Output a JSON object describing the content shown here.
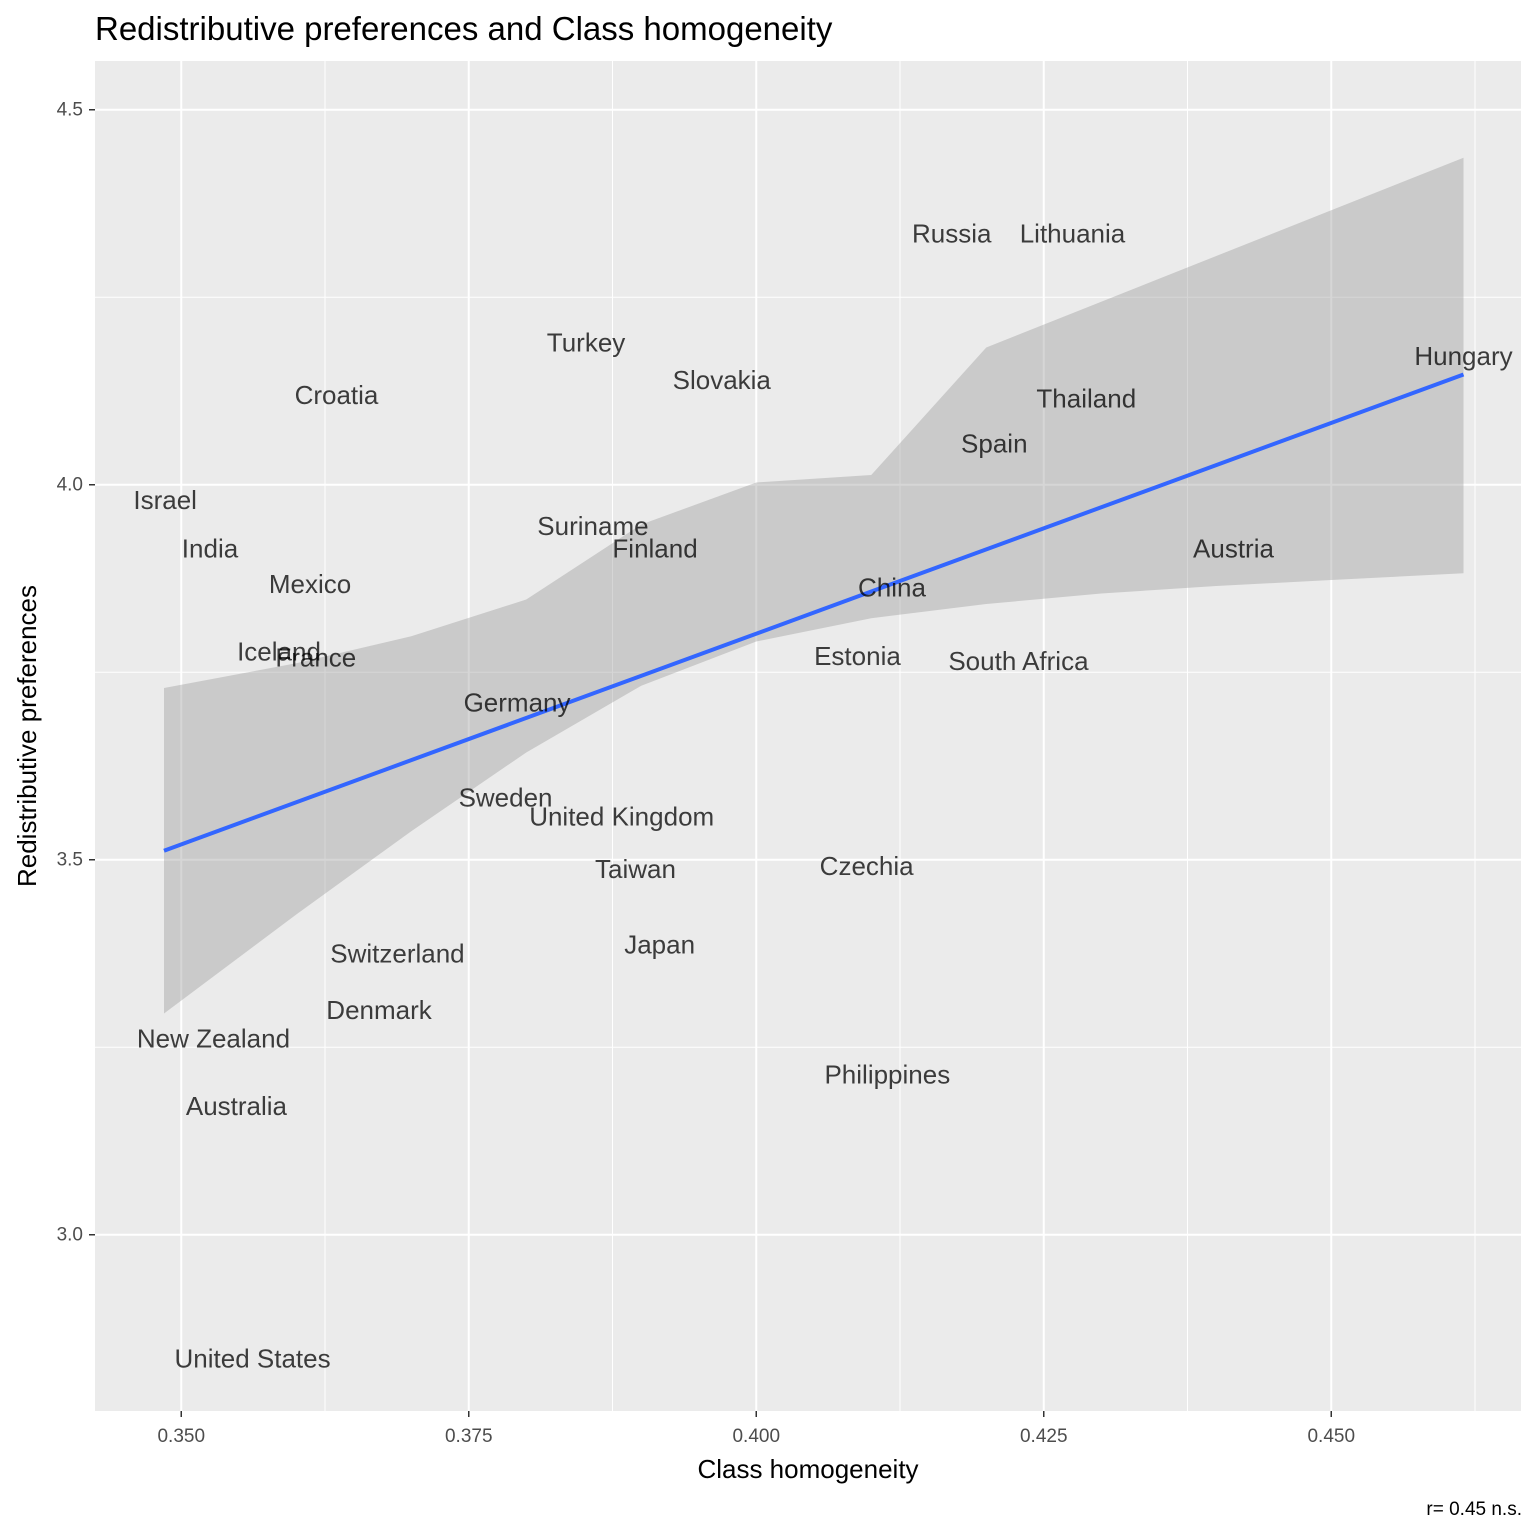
{
  "chart_data": {
    "type": "scatter",
    "title": "Redistributive preferences and Class homogeneity",
    "xlabel": "Class homogeneity",
    "ylabel": "Redistributive preferences",
    "xlim": [
      0.3425,
      0.4665
    ],
    "ylim": [
      2.765,
      4.565
    ],
    "x_ticks": [
      0.35,
      0.375,
      0.4,
      0.425,
      0.45
    ],
    "x_tick_labels": [
      "0.350",
      "0.375",
      "0.400",
      "0.425",
      "0.450"
    ],
    "y_ticks": [
      3.0,
      3.5,
      4.0,
      4.5
    ],
    "y_tick_labels": [
      "3.0",
      "3.5",
      "4.0",
      "4.5"
    ],
    "grid": true,
    "points": [
      {
        "label": "Russia",
        "x": 0.417,
        "y": 4.335
      },
      {
        "label": "Lithuania",
        "x": 0.4275,
        "y": 4.335
      },
      {
        "label": "Turkey",
        "x": 0.3852,
        "y": 4.19
      },
      {
        "label": "Hungary",
        "x": 0.4615,
        "y": 4.172
      },
      {
        "label": "Slovakia",
        "x": 0.397,
        "y": 4.14
      },
      {
        "label": "Croatia",
        "x": 0.3635,
        "y": 4.12
      },
      {
        "label": "Thailand",
        "x": 0.4287,
        "y": 4.115
      },
      {
        "label": "Spain",
        "x": 0.4207,
        "y": 4.055
      },
      {
        "label": "Israel",
        "x": 0.3486,
        "y": 3.98
      },
      {
        "label": "Suriname",
        "x": 0.3858,
        "y": 3.945
      },
      {
        "label": "India",
        "x": 0.3525,
        "y": 3.915
      },
      {
        "label": "Finland",
        "x": 0.3912,
        "y": 3.915
      },
      {
        "label": "Austria",
        "x": 0.4415,
        "y": 3.915
      },
      {
        "label": "Mexico",
        "x": 0.3612,
        "y": 3.868
      },
      {
        "label": "China",
        "x": 0.4118,
        "y": 3.863
      },
      {
        "label": "Iceland",
        "x": 0.3585,
        "y": 3.778
      },
      {
        "label": "France",
        "x": 0.3617,
        "y": 3.77
      },
      {
        "label": "Estonia",
        "x": 0.4088,
        "y": 3.772
      },
      {
        "label": "South Africa",
        "x": 0.4228,
        "y": 3.765
      },
      {
        "label": "Germany",
        "x": 0.3792,
        "y": 3.71
      },
      {
        "label": "Sweden",
        "x": 0.3782,
        "y": 3.583
      },
      {
        "label": "United Kingdom",
        "x": 0.3883,
        "y": 3.558
      },
      {
        "label": "Taiwan",
        "x": 0.3895,
        "y": 3.488
      },
      {
        "label": "Czechia",
        "x": 0.4096,
        "y": 3.492
      },
      {
        "label": "Japan",
        "x": 0.3916,
        "y": 3.387
      },
      {
        "label": "Switzerland",
        "x": 0.3688,
        "y": 3.375
      },
      {
        "label": "Denmark",
        "x": 0.3672,
        "y": 3.3
      },
      {
        "label": "New Zealand",
        "x": 0.3528,
        "y": 3.262
      },
      {
        "label": "Philippines",
        "x": 0.4114,
        "y": 3.214
      },
      {
        "label": "Australia",
        "x": 0.3548,
        "y": 3.172
      },
      {
        "label": "United States",
        "x": 0.3562,
        "y": 2.835
      }
    ],
    "fit_line": {
      "x": [
        0.3485,
        0.4615
      ],
      "y": [
        3.512,
        4.147
      ],
      "color": "#3366ff"
    },
    "confidence_band": {
      "x": [
        0.3485,
        0.36,
        0.37,
        0.38,
        0.39,
        0.4,
        0.41,
        0.42,
        0.43,
        0.44,
        0.45,
        0.4615
      ],
      "lower": [
        3.295,
        3.427,
        3.538,
        3.643,
        3.732,
        3.791,
        3.822,
        3.841,
        3.855,
        3.865,
        3.873,
        3.882
      ],
      "upper": [
        3.729,
        3.762,
        3.798,
        3.847,
        3.947,
        4.003,
        4.013,
        4.183,
        4.244,
        4.305,
        4.366,
        4.436
      ],
      "color": "#999999"
    },
    "panel_background": "#ebebeb",
    "grid_color": "#ffffff"
  },
  "caption": "r= 0.45 n.s."
}
